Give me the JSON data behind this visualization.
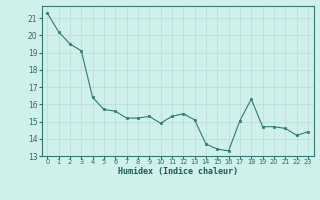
{
  "x": [
    0,
    1,
    2,
    3,
    4,
    5,
    6,
    7,
    8,
    9,
    10,
    11,
    12,
    13,
    14,
    15,
    16,
    17,
    18,
    19,
    20,
    21,
    22,
    23
  ],
  "y": [
    21.3,
    20.2,
    19.5,
    19.1,
    16.4,
    15.7,
    15.6,
    15.2,
    15.2,
    15.3,
    14.9,
    15.3,
    15.45,
    15.1,
    13.7,
    13.4,
    13.3,
    15.05,
    16.3,
    14.7,
    14.7,
    14.6,
    14.2,
    14.4
  ],
  "line_color": "#2e7d6e",
  "marker_color": "#2e7d6e",
  "bg_color": "#cff0eb",
  "grid_color": "#b8ddd8",
  "xlabel": "Humidex (Indice chaleur)",
  "xlim": [
    -0.5,
    23.5
  ],
  "ylim": [
    13,
    21.7
  ],
  "yticks": [
    13,
    14,
    15,
    16,
    17,
    18,
    19,
    20,
    21
  ],
  "xtick_labels": [
    "0",
    "1",
    "2",
    "3",
    "4",
    "5",
    "6",
    "7",
    "8",
    "9",
    "10",
    "11",
    "12",
    "13",
    "14",
    "15",
    "16",
    "17",
    "18",
    "19",
    "20",
    "21",
    "22",
    "23"
  ]
}
